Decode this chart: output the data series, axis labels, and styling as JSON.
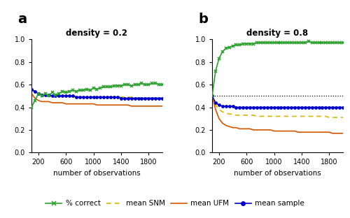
{
  "x": [
    100,
    150,
    200,
    250,
    300,
    350,
    400,
    450,
    500,
    550,
    600,
    650,
    700,
    750,
    800,
    850,
    900,
    950,
    1000,
    1050,
    1100,
    1150,
    1200,
    1250,
    1300,
    1350,
    1400,
    1450,
    1500,
    1550,
    1600,
    1650,
    1700,
    1750,
    1800,
    1850,
    1900,
    1950,
    2000
  ],
  "panel_a": {
    "title": "density = 0.2",
    "pct_correct": [
      0.4,
      0.46,
      0.52,
      0.5,
      0.52,
      0.5,
      0.53,
      0.51,
      0.52,
      0.54,
      0.53,
      0.54,
      0.55,
      0.54,
      0.55,
      0.55,
      0.56,
      0.55,
      0.57,
      0.56,
      0.57,
      0.58,
      0.58,
      0.58,
      0.59,
      0.59,
      0.59,
      0.6,
      0.6,
      0.59,
      0.6,
      0.6,
      0.61,
      0.6,
      0.6,
      0.61,
      0.61,
      0.6,
      0.6
    ],
    "mean_SNM": [
      0.55,
      0.53,
      0.52,
      0.51,
      0.51,
      0.51,
      0.5,
      0.5,
      0.5,
      0.5,
      0.5,
      0.5,
      0.49,
      0.49,
      0.49,
      0.49,
      0.49,
      0.49,
      0.49,
      0.49,
      0.49,
      0.49,
      0.49,
      0.49,
      0.49,
      0.49,
      0.49,
      0.49,
      0.49,
      0.49,
      0.48,
      0.48,
      0.48,
      0.48,
      0.48,
      0.48,
      0.48,
      0.48,
      0.48
    ],
    "mean_UFM": [
      0.52,
      0.48,
      0.46,
      0.45,
      0.45,
      0.45,
      0.44,
      0.44,
      0.44,
      0.44,
      0.43,
      0.43,
      0.43,
      0.43,
      0.43,
      0.43,
      0.43,
      0.43,
      0.43,
      0.42,
      0.42,
      0.42,
      0.42,
      0.42,
      0.42,
      0.42,
      0.42,
      0.42,
      0.42,
      0.41,
      0.41,
      0.41,
      0.41,
      0.41,
      0.41,
      0.41,
      0.41,
      0.41,
      0.41
    ],
    "mean_sample": [
      0.56,
      0.54,
      0.52,
      0.51,
      0.51,
      0.51,
      0.5,
      0.5,
      0.5,
      0.5,
      0.5,
      0.5,
      0.5,
      0.49,
      0.49,
      0.49,
      0.49,
      0.49,
      0.49,
      0.49,
      0.49,
      0.49,
      0.49,
      0.49,
      0.49,
      0.49,
      0.48,
      0.48,
      0.48,
      0.48,
      0.48,
      0.48,
      0.48,
      0.48,
      0.48,
      0.48,
      0.48,
      0.48,
      0.48
    ],
    "hline": null
  },
  "panel_b": {
    "title": "density = 0.8",
    "pct_correct": [
      0.5,
      0.72,
      0.83,
      0.89,
      0.92,
      0.93,
      0.94,
      0.95,
      0.95,
      0.96,
      0.96,
      0.96,
      0.96,
      0.97,
      0.97,
      0.97,
      0.97,
      0.97,
      0.97,
      0.97,
      0.97,
      0.97,
      0.97,
      0.97,
      0.97,
      0.97,
      0.97,
      0.97,
      0.98,
      0.97,
      0.97,
      0.97,
      0.97,
      0.97,
      0.97,
      0.97,
      0.97,
      0.97,
      0.97
    ],
    "mean_SNM": [
      0.5,
      0.42,
      0.38,
      0.36,
      0.35,
      0.34,
      0.34,
      0.33,
      0.33,
      0.33,
      0.33,
      0.33,
      0.33,
      0.32,
      0.32,
      0.32,
      0.32,
      0.32,
      0.32,
      0.32,
      0.32,
      0.32,
      0.32,
      0.32,
      0.32,
      0.32,
      0.32,
      0.32,
      0.32,
      0.32,
      0.32,
      0.32,
      0.32,
      0.32,
      0.31,
      0.31,
      0.31,
      0.31,
      0.31
    ],
    "mean_UFM": [
      0.5,
      0.38,
      0.3,
      0.26,
      0.24,
      0.23,
      0.22,
      0.22,
      0.21,
      0.21,
      0.21,
      0.21,
      0.2,
      0.2,
      0.2,
      0.2,
      0.2,
      0.2,
      0.19,
      0.19,
      0.19,
      0.19,
      0.19,
      0.19,
      0.19,
      0.18,
      0.18,
      0.18,
      0.18,
      0.18,
      0.18,
      0.18,
      0.18,
      0.18,
      0.18,
      0.17,
      0.17,
      0.17,
      0.17
    ],
    "mean_sample": [
      0.5,
      0.44,
      0.42,
      0.41,
      0.41,
      0.41,
      0.41,
      0.4,
      0.4,
      0.4,
      0.4,
      0.4,
      0.4,
      0.4,
      0.4,
      0.4,
      0.4,
      0.4,
      0.4,
      0.4,
      0.4,
      0.4,
      0.4,
      0.4,
      0.4,
      0.4,
      0.4,
      0.4,
      0.4,
      0.4,
      0.4,
      0.4,
      0.4,
      0.4,
      0.4,
      0.4,
      0.4,
      0.4,
      0.4
    ],
    "hline": 0.5
  },
  "colors": {
    "pct_correct": "#2ca02c",
    "mean_SNM": "#d4b800",
    "mean_UFM": "#d45500",
    "mean_sample": "#0000cc"
  },
  "xlabel": "number of observations",
  "xticks": [
    200,
    600,
    1000,
    1400,
    1800
  ],
  "yticks": [
    0.0,
    0.2,
    0.4,
    0.6,
    0.8,
    1.0
  ],
  "ylim": [
    0.0,
    1.0
  ],
  "xlim": [
    100,
    2000
  ],
  "legend_labels": [
    "% correct",
    "mean SNM",
    "mean UFM",
    "mean sample"
  ],
  "panel_labels": [
    "a",
    "b"
  ],
  "bg_color": "#ffffff"
}
